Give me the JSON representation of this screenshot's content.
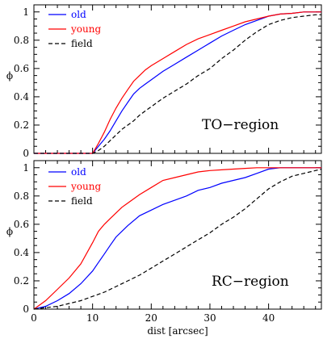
{
  "chart_data": [
    {
      "type": "line",
      "region_label": "TO−region",
      "ylabel": "ϕ",
      "xlabel": "",
      "xlim": [
        0,
        49
      ],
      "ylim": [
        0,
        1.05
      ],
      "xticks": [],
      "yticks": [
        0,
        0.2,
        0.4,
        0.6,
        0.8,
        1
      ],
      "ytick_labels": [
        "0",
        "0.2",
        "0.4",
        "0.6",
        "0.8",
        "1"
      ],
      "legend_position": "top-left",
      "series": [
        {
          "name": "old",
          "color": "#0000ff",
          "dash": "solid",
          "x": [
            0,
            10,
            11,
            12,
            13,
            14,
            15,
            16,
            17,
            18,
            19,
            20,
            22,
            24,
            26,
            28,
            30,
            32,
            34,
            36,
            38,
            40,
            42,
            44,
            46,
            48,
            49
          ],
          "y": [
            0,
            0,
            0.05,
            0.1,
            0.16,
            0.23,
            0.3,
            0.36,
            0.42,
            0.46,
            0.49,
            0.52,
            0.58,
            0.63,
            0.68,
            0.73,
            0.78,
            0.83,
            0.87,
            0.91,
            0.94,
            0.97,
            0.985,
            0.99,
            1.0,
            1.0,
            1.0
          ]
        },
        {
          "name": "young",
          "color": "#ff0000",
          "dash": "solid",
          "x": [
            0,
            10,
            11,
            12,
            13,
            14,
            15,
            16,
            17,
            18,
            19,
            20,
            22,
            24,
            26,
            28,
            30,
            32,
            34,
            36,
            38,
            40,
            42,
            44,
            46,
            48,
            49
          ],
          "y": [
            0,
            0,
            0.07,
            0.15,
            0.24,
            0.32,
            0.39,
            0.45,
            0.51,
            0.55,
            0.59,
            0.62,
            0.67,
            0.72,
            0.77,
            0.81,
            0.84,
            0.87,
            0.9,
            0.93,
            0.95,
            0.97,
            0.985,
            0.99,
            1.0,
            1.0,
            1.0
          ]
        },
        {
          "name": "field",
          "color": "#000000",
          "dash": "dashed",
          "x": [
            0,
            10,
            11,
            12,
            13,
            14,
            15,
            16,
            17,
            18,
            19,
            20,
            22,
            24,
            26,
            28,
            30,
            32,
            34,
            36,
            38,
            40,
            42,
            44,
            46,
            48,
            49
          ],
          "y": [
            0,
            0,
            0.02,
            0.05,
            0.09,
            0.13,
            0.17,
            0.2,
            0.23,
            0.27,
            0.3,
            0.33,
            0.39,
            0.44,
            0.49,
            0.55,
            0.6,
            0.67,
            0.73,
            0.8,
            0.86,
            0.91,
            0.94,
            0.96,
            0.97,
            0.98,
            0.98
          ]
        }
      ]
    },
    {
      "type": "line",
      "region_label": "RC−region",
      "ylabel": "ϕ",
      "xlabel": "dist [arcsec]",
      "xlim": [
        0,
        49
      ],
      "ylim": [
        0,
        1.05
      ],
      "xticks": [
        0,
        10,
        20,
        30,
        40
      ],
      "xtick_labels": [
        "0",
        "10",
        "20",
        "30",
        "40"
      ],
      "yticks": [
        0,
        0.2,
        0.4,
        0.6,
        0.8,
        1
      ],
      "ytick_labels": [
        "0",
        "0.2",
        "0.4",
        "0.6",
        "0.8",
        "1"
      ],
      "legend_position": "top-left",
      "series": [
        {
          "name": "old",
          "color": "#0000ff",
          "dash": "solid",
          "x": [
            0,
            2,
            4,
            6,
            8,
            10,
            11,
            12,
            13,
            14,
            15,
            16,
            18,
            20,
            22,
            24,
            26,
            28,
            30,
            32,
            34,
            36,
            38,
            40,
            42,
            44,
            46,
            48,
            49
          ],
          "y": [
            0,
            0.02,
            0.06,
            0.11,
            0.18,
            0.27,
            0.33,
            0.39,
            0.45,
            0.51,
            0.55,
            0.59,
            0.66,
            0.7,
            0.74,
            0.77,
            0.8,
            0.84,
            0.86,
            0.89,
            0.91,
            0.93,
            0.96,
            0.99,
            1.0,
            1.0,
            1.0,
            1.0,
            1.0
          ]
        },
        {
          "name": "young",
          "color": "#ff0000",
          "dash": "solid",
          "x": [
            0,
            2,
            4,
            6,
            8,
            10,
            11,
            12,
            13,
            14,
            15,
            16,
            18,
            20,
            22,
            24,
            26,
            28,
            30,
            32,
            34,
            36,
            38,
            40,
            42,
            44,
            46,
            48,
            49
          ],
          "y": [
            0,
            0.06,
            0.14,
            0.22,
            0.32,
            0.47,
            0.55,
            0.6,
            0.64,
            0.68,
            0.72,
            0.75,
            0.81,
            0.86,
            0.91,
            0.93,
            0.95,
            0.97,
            0.98,
            0.985,
            0.99,
            0.995,
            1.0,
            1.0,
            1.0,
            1.0,
            1.0,
            1.0,
            1.0
          ]
        },
        {
          "name": "field",
          "color": "#000000",
          "dash": "dashed",
          "x": [
            0,
            2,
            4,
            6,
            8,
            10,
            12,
            14,
            16,
            18,
            20,
            22,
            24,
            26,
            28,
            30,
            32,
            34,
            36,
            38,
            40,
            42,
            44,
            46,
            48,
            49
          ],
          "y": [
            0,
            0.01,
            0.02,
            0.04,
            0.06,
            0.09,
            0.12,
            0.16,
            0.2,
            0.24,
            0.29,
            0.34,
            0.39,
            0.44,
            0.49,
            0.54,
            0.6,
            0.65,
            0.71,
            0.78,
            0.85,
            0.9,
            0.94,
            0.96,
            0.98,
            0.99
          ]
        }
      ]
    }
  ]
}
